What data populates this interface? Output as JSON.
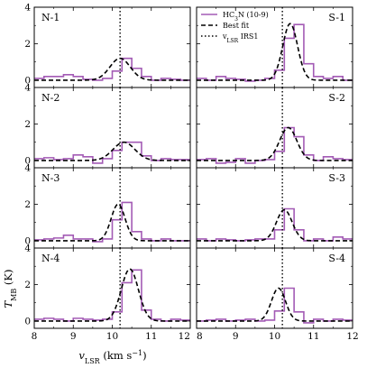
{
  "chart_data": {
    "type": "line",
    "layout": "4 rows x 2 columns of step-line spectra panels sharing axes",
    "xlabel_main": "v",
    "xlabel_sub": "LSR",
    "xlabel_unit": " (km s",
    "xlabel_exp": "−1",
    "xlabel_close": ")",
    "ylabel_main": "T",
    "ylabel_sub": "MB",
    "ylabel_unit": " (K)",
    "xlim": [
      8,
      12
    ],
    "ylim": [
      -0.4,
      4
    ],
    "xticks": [
      8,
      9,
      10,
      11,
      12
    ],
    "yticks": [
      0,
      2,
      4
    ],
    "vline_x": 10.2,
    "legend": {
      "placement": "top-left of panel S-1",
      "entries": [
        {
          "main": "HC",
          "sub1": "3",
          "mid": "N (10-9)",
          "style": "solid",
          "color": "#a35bb5"
        },
        {
          "main": "Best fit",
          "style": "dashed",
          "color": "#000000"
        },
        {
          "main": "v",
          "sub1": "LSR",
          "mid": " IRS1",
          "style": "dotted",
          "color": "#000000"
        }
      ]
    },
    "series_x": [
      8.0,
      8.25,
      8.5,
      8.75,
      9.0,
      9.25,
      9.5,
      9.75,
      10.0,
      10.25,
      10.5,
      10.75,
      11.0,
      11.25,
      11.5,
      11.75,
      12.0
    ],
    "panels": [
      {
        "name": "N-1",
        "label_pos": "left",
        "obs": [
          0.1,
          0.2,
          0.2,
          0.3,
          0.2,
          0.05,
          0.0,
          0.1,
          0.5,
          1.2,
          0.65,
          0.2,
          0.0,
          0.1,
          0.05,
          0.0
        ],
        "fit": {
          "amp": 1.2,
          "center": 10.2,
          "sigma": 0.26
        }
      },
      {
        "name": "S-1",
        "label_pos": "right",
        "obs": [
          0.1,
          0.0,
          0.2,
          0.1,
          0.05,
          -0.05,
          0.0,
          0.1,
          0.55,
          2.3,
          3.05,
          0.9,
          0.2,
          0.1,
          0.2,
          0.0
        ],
        "fit": {
          "amp": 3.1,
          "center": 10.4,
          "sigma": 0.19
        }
      },
      {
        "name": "N-2",
        "label_pos": "left",
        "obs": [
          0.1,
          0.15,
          0.05,
          0.1,
          0.3,
          0.2,
          -0.15,
          0.1,
          0.55,
          1.0,
          1.0,
          0.25,
          0.0,
          0.1,
          0.05,
          0.05
        ],
        "fit": {
          "amp": 1.0,
          "center": 10.3,
          "sigma": 0.28
        }
      },
      {
        "name": "S-2",
        "label_pos": "right",
        "obs": [
          0.05,
          0.1,
          -0.15,
          -0.1,
          0.1,
          -0.15,
          0.0,
          0.05,
          0.5,
          1.8,
          1.3,
          0.3,
          0.0,
          0.2,
          0.1,
          0.05
        ],
        "fit": {
          "amp": 1.8,
          "center": 10.35,
          "sigma": 0.22
        }
      },
      {
        "name": "N-3",
        "label_pos": "left",
        "obs": [
          0.05,
          0.1,
          0.15,
          0.3,
          0.1,
          0.1,
          -0.05,
          0.1,
          1.15,
          2.1,
          0.5,
          0.1,
          0.0,
          0.1,
          0.0,
          0.0
        ],
        "fit": {
          "amp": 2.0,
          "center": 10.15,
          "sigma": 0.18
        }
      },
      {
        "name": "S-3",
        "label_pos": "right",
        "obs": [
          0.1,
          0.0,
          0.1,
          0.05,
          0.0,
          0.05,
          0.1,
          0.1,
          0.6,
          1.75,
          0.6,
          0.0,
          0.1,
          0.0,
          0.2,
          0.1
        ],
        "fit": {
          "amp": 1.7,
          "center": 10.25,
          "sigma": 0.2
        }
      },
      {
        "name": "N-4",
        "label_pos": "left",
        "obs": [
          0.1,
          0.15,
          0.1,
          0.0,
          0.15,
          0.1,
          0.05,
          0.1,
          0.5,
          2.1,
          2.8,
          0.6,
          0.1,
          0.0,
          0.1,
          0.05
        ],
        "fit": {
          "amp": 2.85,
          "center": 10.45,
          "sigma": 0.22
        }
      },
      {
        "name": "S-4",
        "label_pos": "right",
        "obs": [
          0.0,
          0.05,
          0.1,
          0.0,
          0.05,
          0.1,
          0.0,
          0.05,
          0.55,
          1.8,
          0.5,
          -0.1,
          0.1,
          0.0,
          0.1,
          0.05
        ],
        "fit": {
          "amp": 1.8,
          "center": 10.1,
          "sigma": 0.18
        }
      }
    ]
  }
}
